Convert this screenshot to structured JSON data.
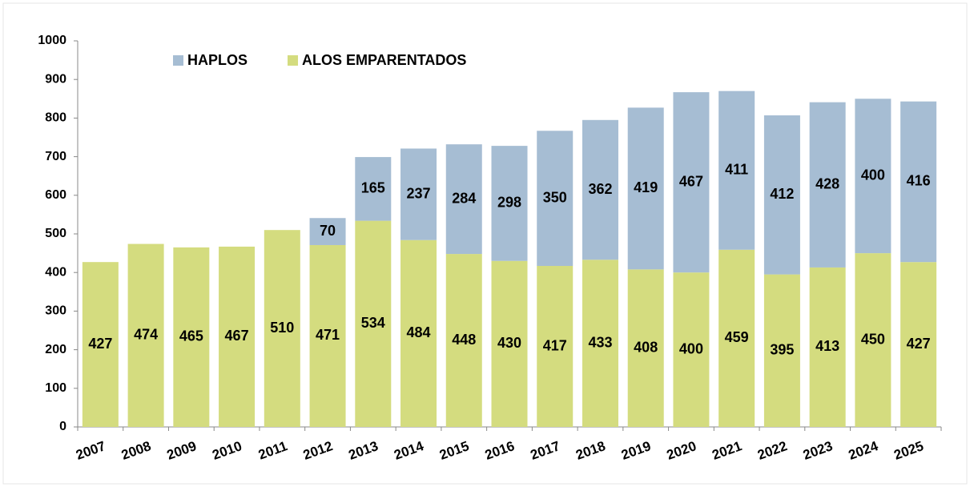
{
  "chart_data": {
    "type": "stacked_bar",
    "categories": [
      "2007",
      "2008",
      "2009",
      "2010",
      "2011",
      "2012",
      "2013",
      "2014",
      "2015",
      "2016",
      "2017",
      "2018",
      "2019",
      "2020",
      "2021",
      "2022",
      "2023",
      "2024",
      "2025"
    ],
    "series": [
      {
        "name": "ALOS EMPARENTADOS",
        "color": "#d4dc7f",
        "values": [
          427,
          474,
          465,
          467,
          510,
          471,
          534,
          484,
          448,
          430,
          417,
          433,
          408,
          400,
          459,
          395,
          413,
          450,
          427
        ]
      },
      {
        "name": "HAPLOS",
        "color": "#a6bdd3",
        "values": [
          null,
          null,
          null,
          null,
          null,
          70,
          165,
          237,
          284,
          298,
          350,
          362,
          419,
          467,
          411,
          412,
          428,
          400,
          416
        ]
      }
    ],
    "ylim": [
      0,
      1000
    ],
    "yticks": [
      0,
      100,
      200,
      300,
      400,
      500,
      600,
      700,
      800,
      900,
      1000
    ],
    "legend": "top-left"
  }
}
